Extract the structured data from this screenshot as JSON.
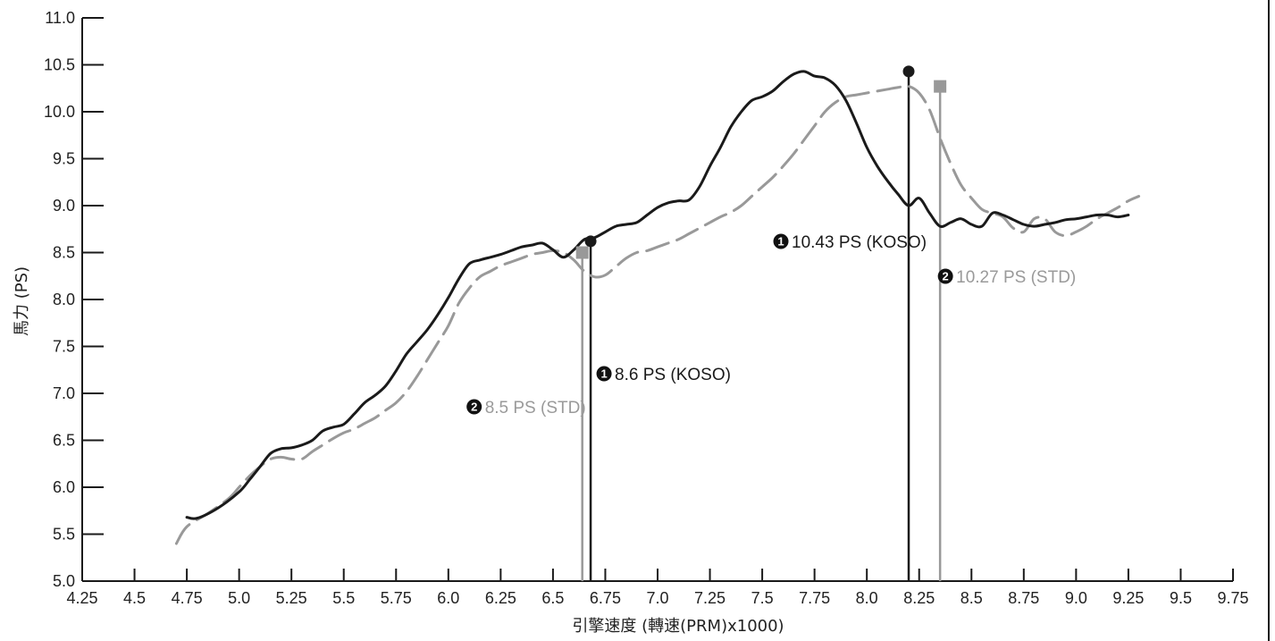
{
  "chart_data": {
    "type": "line",
    "xlabel": "引擎速度 (轉速(PRM)x1000)",
    "ylabel": "馬力 (PS)",
    "xlim": [
      4.25,
      9.75
    ],
    "ylim": [
      5.0,
      11.0
    ],
    "x_ticks": [
      "4.25",
      "4.5",
      "4.75",
      "5.0",
      "5.25",
      "5.5",
      "5.75",
      "6.0",
      "6.25",
      "6.5",
      "6.75",
      "7.0",
      "7.25",
      "7.5",
      "7.75",
      "8.0",
      "8.25",
      "8.5",
      "8.75",
      "9.0",
      "9.25",
      "9.5",
      "9.75"
    ],
    "y_ticks": [
      "5.0",
      "5.5",
      "6.0",
      "6.5",
      "7.0",
      "7.5",
      "8.0",
      "8.5",
      "9.0",
      "9.5",
      "10.0",
      "10.5",
      "11.0"
    ],
    "grid": false,
    "series": [
      {
        "color": "#1a1a1a",
        "style": "solid",
        "x": [
          4.75,
          4.8,
          4.9,
          5.0,
          5.05,
          5.1,
          5.15,
          5.2,
          5.25,
          5.3,
          5.35,
          5.4,
          5.45,
          5.5,
          5.55,
          5.6,
          5.65,
          5.7,
          5.75,
          5.8,
          5.85,
          5.9,
          5.95,
          6.0,
          6.05,
          6.1,
          6.15,
          6.2,
          6.25,
          6.3,
          6.35,
          6.4,
          6.45,
          6.5,
          6.55,
          6.6,
          6.65,
          6.7,
          6.75,
          6.8,
          6.85,
          6.9,
          6.95,
          7.0,
          7.05,
          7.1,
          7.15,
          7.2,
          7.25,
          7.3,
          7.35,
          7.4,
          7.45,
          7.5,
          7.55,
          7.6,
          7.65,
          7.7,
          7.75,
          7.8,
          7.85,
          7.9,
          7.95,
          8.0,
          8.05,
          8.1,
          8.15,
          8.2,
          8.25,
          8.3,
          8.35,
          8.4,
          8.45,
          8.5,
          8.55,
          8.6,
          8.65,
          8.7,
          8.75,
          8.8,
          8.85,
          8.9,
          8.95,
          9.0,
          9.05,
          9.1,
          9.15,
          9.2,
          9.25
        ],
        "y": [
          5.68,
          5.67,
          5.78,
          5.95,
          6.08,
          6.22,
          6.36,
          6.41,
          6.42,
          6.45,
          6.5,
          6.6,
          6.64,
          6.67,
          6.78,
          6.9,
          6.98,
          7.08,
          7.24,
          7.42,
          7.55,
          7.68,
          7.84,
          8.02,
          8.22,
          8.38,
          8.42,
          8.45,
          8.48,
          8.52,
          8.56,
          8.58,
          8.6,
          8.53,
          8.45,
          8.53,
          8.64,
          8.66,
          8.72,
          8.78,
          8.8,
          8.82,
          8.9,
          8.98,
          9.03,
          9.05,
          9.06,
          9.2,
          9.42,
          9.62,
          9.84,
          10.0,
          10.12,
          10.16,
          10.22,
          10.32,
          10.4,
          10.43,
          10.38,
          10.36,
          10.28,
          10.12,
          9.88,
          9.62,
          9.42,
          9.26,
          9.12,
          9.0,
          9.08,
          8.92,
          8.78,
          8.82,
          8.86,
          8.8,
          8.78,
          8.92,
          8.9,
          8.85,
          8.8,
          8.78,
          8.8,
          8.82,
          8.85,
          8.86,
          8.88,
          8.9,
          8.9,
          8.88,
          8.9
        ]
      },
      {
        "color": "#999999",
        "style": "dashed",
        "x": [
          4.7,
          4.75,
          4.85,
          4.95,
          5.0,
          5.05,
          5.1,
          5.15,
          5.2,
          5.25,
          5.3,
          5.35,
          5.4,
          5.45,
          5.5,
          5.55,
          5.6,
          5.65,
          5.7,
          5.75,
          5.8,
          5.85,
          5.9,
          5.95,
          6.0,
          6.05,
          6.1,
          6.15,
          6.2,
          6.25,
          6.3,
          6.35,
          6.4,
          6.45,
          6.5,
          6.55,
          6.6,
          6.65,
          6.7,
          6.75,
          6.8,
          6.85,
          6.9,
          6.95,
          7.0,
          7.05,
          7.1,
          7.15,
          7.2,
          7.25,
          7.3,
          7.35,
          7.4,
          7.45,
          7.5,
          7.55,
          7.6,
          7.65,
          7.7,
          7.75,
          7.8,
          7.85,
          7.9,
          7.95,
          8.0,
          8.05,
          8.1,
          8.15,
          8.2,
          8.25,
          8.3,
          8.35,
          8.4,
          8.45,
          8.5,
          8.55,
          8.6,
          8.65,
          8.7,
          8.75,
          8.8,
          8.85,
          8.9,
          8.95,
          9.0,
          9.05,
          9.1,
          9.15,
          9.2,
          9.25,
          9.3
        ],
        "y": [
          5.4,
          5.58,
          5.72,
          5.88,
          6.0,
          6.12,
          6.22,
          6.3,
          6.32,
          6.3,
          6.3,
          6.38,
          6.45,
          6.52,
          6.58,
          6.62,
          6.68,
          6.74,
          6.82,
          6.9,
          7.02,
          7.18,
          7.36,
          7.54,
          7.72,
          7.96,
          8.12,
          8.24,
          8.3,
          8.36,
          8.4,
          8.44,
          8.48,
          8.5,
          8.52,
          8.5,
          8.42,
          8.3,
          8.24,
          8.26,
          8.35,
          8.44,
          8.5,
          8.52,
          8.56,
          8.6,
          8.64,
          8.7,
          8.76,
          8.82,
          8.88,
          8.93,
          9.0,
          9.1,
          9.2,
          9.3,
          9.42,
          9.55,
          9.7,
          9.85,
          10.0,
          10.1,
          10.16,
          10.18,
          10.2,
          10.22,
          10.24,
          10.26,
          10.27,
          10.2,
          10.02,
          9.72,
          9.45,
          9.22,
          9.08,
          8.96,
          8.92,
          8.88,
          8.76,
          8.72,
          8.86,
          8.86,
          8.72,
          8.68,
          8.72,
          8.78,
          8.86,
          8.92,
          8.98,
          9.05,
          9.1
        ]
      }
    ],
    "annotations": [
      {
        "badge": "1",
        "text": "8.6 PS (KOSO)",
        "x": 6.68,
        "y": 8.62,
        "color": "#1a1a1a",
        "marker": "circle"
      },
      {
        "badge": "2",
        "text": "8.5 PS (STD)",
        "x": 6.64,
        "y": 8.5,
        "color": "#999999",
        "marker": "square"
      },
      {
        "badge": "1",
        "text": "10.43 PS (KOSO)",
        "x": 8.2,
        "y": 10.43,
        "color": "#1a1a1a",
        "marker": "circle"
      },
      {
        "badge": "2",
        "text": "10.27 PS (STD)",
        "x": 8.35,
        "y": 10.27,
        "color": "#999999",
        "marker": "square"
      }
    ]
  }
}
